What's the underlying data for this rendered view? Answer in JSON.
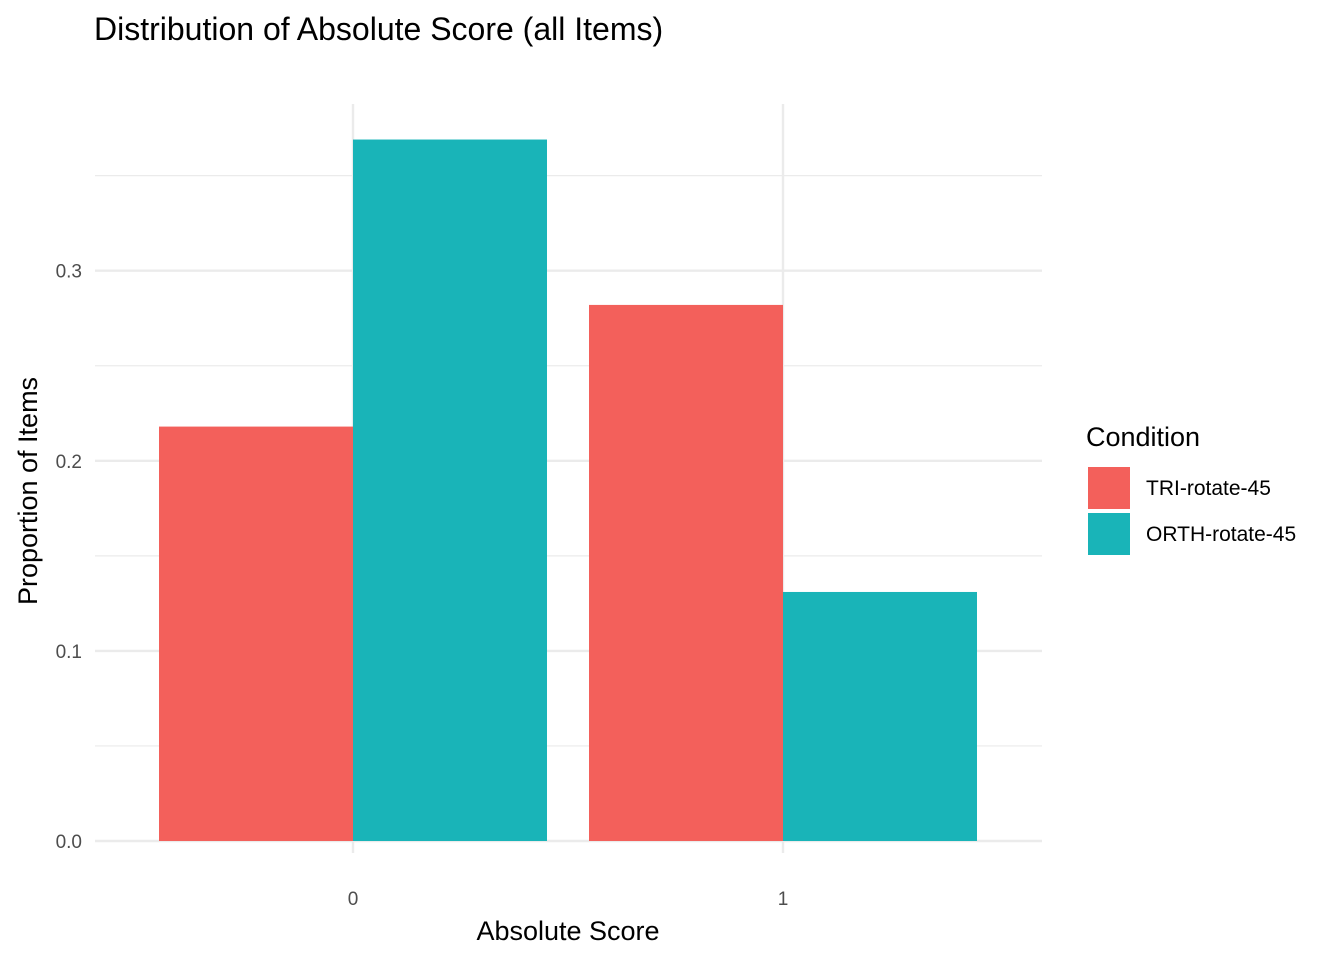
{
  "chart_data": {
    "type": "bar",
    "title": "Distribution of Absolute Score (all Items)",
    "xlabel": "Absolute Score",
    "ylabel": "Proportion of Items",
    "categories": [
      "0",
      "1"
    ],
    "series": [
      {
        "name": "TRI-rotate-45",
        "color": "#F3605B",
        "values": [
          0.218,
          0.282
        ]
      },
      {
        "name": "ORTH-rotate-45",
        "color": "#19B4B8",
        "values": [
          0.369,
          0.131
        ]
      }
    ],
    "ylim": [
      0,
      0.369
    ],
    "y_ticks": [
      0.0,
      0.1,
      0.2,
      0.3
    ],
    "y_tick_labels": [
      "0.0",
      "0.1",
      "0.2",
      "0.3"
    ],
    "grid": true,
    "legend": {
      "title": "Condition",
      "position": "right"
    }
  }
}
